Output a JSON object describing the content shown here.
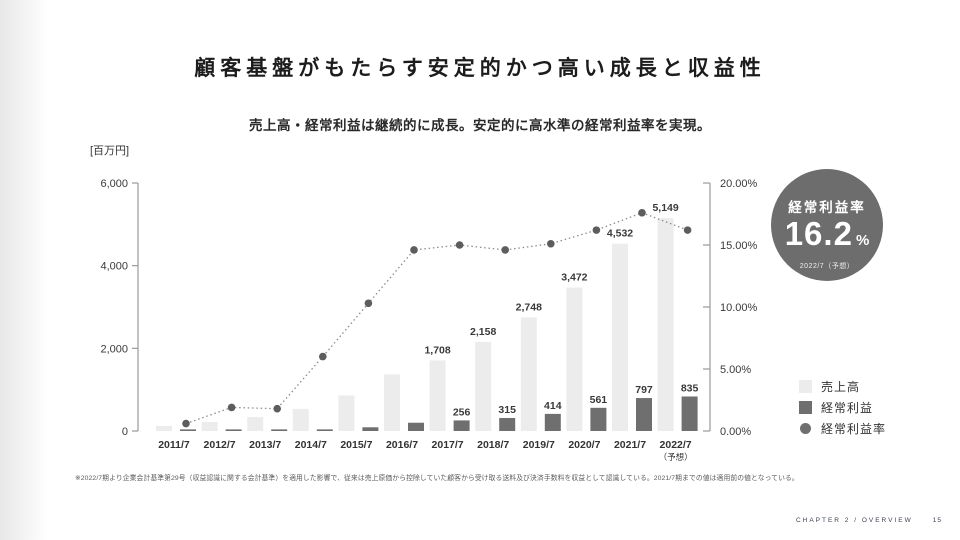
{
  "slide": {
    "title": "顧客基盤がもたらす安定的かつ高い成長と収益性",
    "subtitle": "売上高・経常利益は継続的に成長。安定的に高水準の経常利益率を実現。",
    "unit_label": "[百万円]",
    "footnote": "※2022/7期より企業会計基準第29号（収益認識に関する会計基準）を適用した影響で、従来は売上原価から控除していた顧客から受け取る送料及び決済手数料を収益として認識している。2021/7期までの値は適用前の値となっている。",
    "footer_chapter": "CHAPTER 2 / OVERVIEW",
    "footer_page": "15"
  },
  "badge": {
    "label": "経常利益率",
    "value": "16.2",
    "unit": "%",
    "caption": "2022/7（予想）"
  },
  "legend": [
    {
      "label": "売上高",
      "shape": "square",
      "color": "#ececec"
    },
    {
      "label": "経常利益",
      "shape": "square",
      "color": "#6f6f6f"
    },
    {
      "label": "経常利益率",
      "shape": "circle",
      "color": "#6f6f6f"
    }
  ],
  "colors": {
    "revenue_bar": "#ececec",
    "profit_bar": "#6f6f6f",
    "rate_dot": "#5d5d5d",
    "rate_line": "#8c8c8c",
    "axis": "#9a9a9a",
    "tick_text": "#3a3a3a",
    "value_text": "#3c3c3c",
    "badge_bg": "#6d6d6d"
  },
  "chart_data": {
    "type": "bar+line combo",
    "unit_label": "百万円",
    "categories": [
      "2011/7",
      "2012/7",
      "2013/7",
      "2014/7",
      "2015/7",
      "2016/7",
      "2017/7",
      "2018/7",
      "2019/7",
      "2020/7",
      "2021/7",
      "2022/7"
    ],
    "forecast_note": "（予想）",
    "forecast_index": 11,
    "series": [
      {
        "name": "売上高",
        "type": "bar",
        "axis": "left",
        "values": [
          120,
          220,
          340,
          535,
          860,
          1370,
          1708,
          2158,
          2748,
          3472,
          4532,
          5149
        ],
        "labels": [
          null,
          null,
          null,
          null,
          null,
          null,
          "1,708",
          "2,158",
          "2,748",
          "3,472",
          "4,532",
          "5,149"
        ]
      },
      {
        "name": "経常利益",
        "type": "bar",
        "axis": "left",
        "values": [
          5,
          5,
          8,
          32,
          90,
          200,
          256,
          315,
          414,
          561,
          797,
          835
        ],
        "labels": [
          null,
          null,
          null,
          null,
          null,
          null,
          "256",
          "315",
          "414",
          "561",
          "797",
          "835"
        ]
      },
      {
        "name": "経常利益率",
        "type": "line",
        "axis": "right",
        "style": "dotted",
        "values": [
          0.6,
          1.9,
          1.8,
          6.0,
          10.3,
          14.6,
          15.0,
          14.6,
          15.1,
          16.2,
          17.6,
          16.2
        ]
      }
    ],
    "left_axis": {
      "max": 6000,
      "min": 0,
      "ticks": [
        {
          "value": 0,
          "label": "0"
        },
        {
          "value": 2000,
          "label": "2,000"
        },
        {
          "value": 4000,
          "label": "4,000"
        },
        {
          "value": 6000,
          "label": "6,000"
        }
      ]
    },
    "right_axis": {
      "max": 20,
      "min": 0,
      "ticks": [
        {
          "value": 0,
          "label": "0.00%"
        },
        {
          "value": 5,
          "label": "5.00%"
        },
        {
          "value": 10,
          "label": "10.00%"
        },
        {
          "value": 15,
          "label": "15.00%"
        },
        {
          "value": 20,
          "label": "20.00%"
        }
      ]
    },
    "legend_position": "right-bottom",
    "grid": false
  }
}
